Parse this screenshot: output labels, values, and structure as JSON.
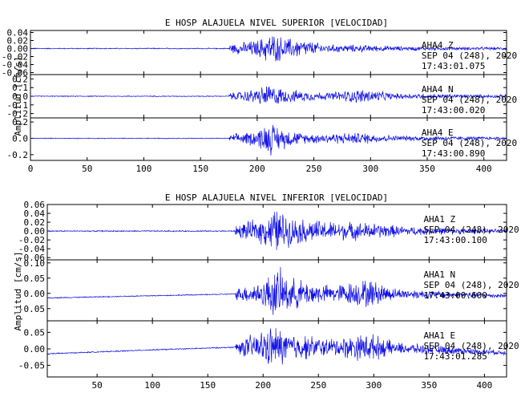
{
  "chart_data": [
    {
      "type": "line",
      "title": "E HOSP ALAJUELA NIVEL SUPERIOR [VELOCIDAD]",
      "ylabel": "Amplitud [cm/s]",
      "xlabel": "",
      "xlim": [
        0,
        420
      ],
      "x_ticks": [
        "0",
        "50",
        "100",
        "150",
        "200",
        "250",
        "300",
        "350",
        "400"
      ],
      "grid": false,
      "panels": [
        {
          "station": "AHA4",
          "component": "Z",
          "date": "SEP 04 (248), 2020",
          "time": "17:43:01.075",
          "ylim": [
            -0.065,
            0.045
          ],
          "y_ticks": [
            "0.04",
            "0.02",
            "0.00",
            "-0.02",
            "-0.04",
            "-0.06"
          ],
          "baseline": [
            [
              0,
              0
            ],
            [
              420,
              0
            ]
          ],
          "envelope_peaks": [
            [
              175,
              0.012
            ],
            [
              200,
              0.025
            ],
            [
              212,
              0.045
            ],
            [
              225,
              0.03
            ],
            [
              237,
              0.028
            ],
            [
              260,
              0.012
            ],
            [
              295,
              0.01
            ],
            [
              330,
              0.006
            ],
            [
              415,
              0.004
            ]
          ],
          "noise": 0.0015
        },
        {
          "station": "AHA4",
          "component": "N",
          "date": "SEP 04 (248), 2020",
          "time": "17:43:00.020",
          "ylim": [
            -0.25,
            0.25
          ],
          "y_ticks": [
            "0.2",
            "0.1",
            "0.0",
            "-0.1",
            "-0.2"
          ],
          "baseline": [
            [
              0,
              0
            ],
            [
              420,
              0
            ]
          ],
          "envelope_peaks": [
            [
              175,
              0.04
            ],
            [
              200,
              0.1
            ],
            [
              210,
              0.16
            ],
            [
              225,
              0.09
            ],
            [
              260,
              0.05
            ],
            [
              295,
              0.1
            ],
            [
              320,
              0.04
            ],
            [
              415,
              0.02
            ]
          ],
          "noise": 0.006
        },
        {
          "station": "AHA4",
          "component": "E",
          "date": "SEP 04 (248), 2020",
          "time": "17:43:00.890",
          "ylim": [
            -0.27,
            0.25
          ],
          "y_ticks": [
            "0.2",
            "0.0",
            "-0.2"
          ],
          "baseline": [
            [
              0,
              0
            ],
            [
              420,
              0
            ]
          ],
          "envelope_peaks": [
            [
              175,
              0.04
            ],
            [
              200,
              0.12
            ],
            [
              210,
              0.24
            ],
            [
              220,
              0.16
            ],
            [
              240,
              0.07
            ],
            [
              295,
              0.08
            ],
            [
              320,
              0.04
            ],
            [
              415,
              0.02
            ]
          ],
          "noise": 0.006
        }
      ]
    },
    {
      "type": "line",
      "title": "E HOSP ALAJUELA NIVEL INFERIOR [VELOCIDAD]",
      "ylabel": "Amplitud [cm/s]",
      "xlabel": "",
      "xlim": [
        5,
        420
      ],
      "x_ticks": [
        "50",
        "100",
        "150",
        "200",
        "250",
        "300",
        "350",
        "400"
      ],
      "grid": false,
      "panels": [
        {
          "station": "AHA1",
          "component": "Z",
          "date": "SEP 04 (248), 2020",
          "time": "17:43:00.100",
          "ylim": [
            -0.065,
            0.06
          ],
          "y_ticks": [
            "0.06",
            "0.04",
            "0.02",
            "0.00",
            "-0.02",
            "-0.04",
            "-0.06"
          ],
          "baseline": [
            [
              5,
              0
            ],
            [
              420,
              0
            ]
          ],
          "envelope_peaks": [
            [
              175,
              0.015
            ],
            [
              200,
              0.035
            ],
            [
              212,
              0.06
            ],
            [
              225,
              0.035
            ],
            [
              260,
              0.025
            ],
            [
              295,
              0.022
            ],
            [
              330,
              0.012
            ],
            [
              415,
              0.005
            ]
          ],
          "noise": 0.0015
        },
        {
          "station": "AHA1",
          "component": "N",
          "date": "SEP 04 (248), 2020",
          "time": "17:43:00.600",
          "ylim": [
            -0.09,
            0.11
          ],
          "y_ticks": [
            "0.10",
            "0.05",
            "0.00",
            "-0.05"
          ],
          "baseline": [
            [
              5,
              -0.015
            ],
            [
              175,
              -0.002
            ],
            [
              300,
              0.0
            ],
            [
              420,
              -0.008
            ]
          ],
          "envelope_peaks": [
            [
              175,
              0.02
            ],
            [
              200,
              0.05
            ],
            [
              212,
              0.1
            ],
            [
              225,
              0.06
            ],
            [
              260,
              0.03
            ],
            [
              295,
              0.055
            ],
            [
              320,
              0.02
            ],
            [
              415,
              0.008
            ]
          ],
          "noise": 0.002
        },
        {
          "station": "AHA1",
          "component": "E",
          "date": "SEP 04 (248), 2020",
          "time": "17:43:01.285",
          "ylim": [
            -0.085,
            0.085
          ],
          "y_ticks": [
            "0.05",
            "0.00",
            "-0.05"
          ],
          "baseline": [
            [
              5,
              -0.015
            ],
            [
              100,
              -0.003
            ],
            [
              175,
              0.005
            ],
            [
              300,
              0.005
            ],
            [
              420,
              -0.012
            ]
          ],
          "envelope_peaks": [
            [
              175,
              0.02
            ],
            [
              200,
              0.06
            ],
            [
              210,
              0.075
            ],
            [
              225,
              0.05
            ],
            [
              260,
              0.03
            ],
            [
              295,
              0.05
            ],
            [
              320,
              0.02
            ],
            [
              415,
              0.008
            ]
          ],
          "noise": 0.002
        }
      ]
    }
  ]
}
